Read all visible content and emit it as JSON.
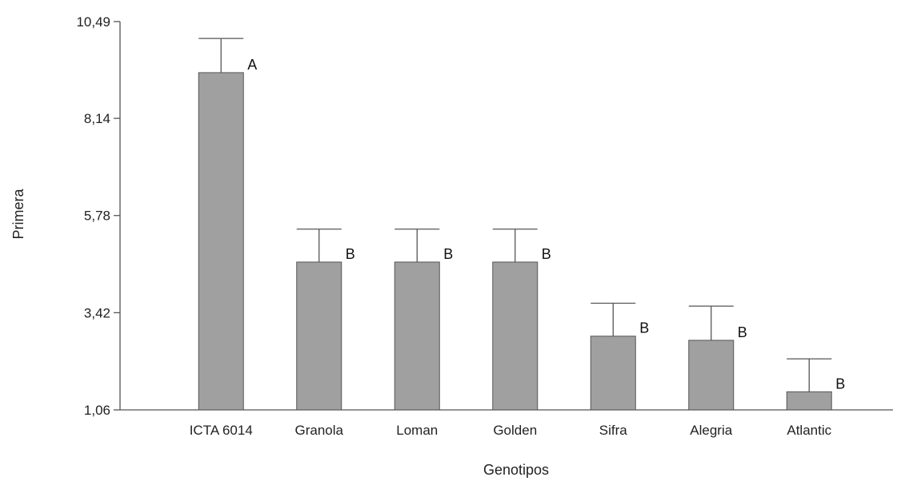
{
  "chart_data": {
    "type": "bar",
    "title": "",
    "xlabel": "Genotipos",
    "ylabel": "Primera",
    "ylim": [
      1.06,
      10.49
    ],
    "yticks": [
      "1,06",
      "3,42",
      "5,78",
      "8,14",
      "10,49"
    ],
    "yticks_values": [
      1.06,
      3.42,
      5.78,
      8.14,
      10.49
    ],
    "categories": [
      "ICTA 6014",
      "Granola",
      "Loman",
      "Golden",
      "Sifra",
      "Alegria",
      "Atlantic"
    ],
    "values": [
      9.25,
      4.65,
      4.65,
      4.65,
      2.85,
      2.75,
      1.5
    ],
    "error_upper": [
      10.08,
      5.45,
      5.45,
      5.45,
      3.65,
      3.58,
      2.3
    ],
    "letters": [
      "A",
      "B",
      "B",
      "B",
      "B",
      "B",
      "B"
    ],
    "bar_color": "#a0a0a0",
    "grid": false,
    "legend": "none"
  }
}
